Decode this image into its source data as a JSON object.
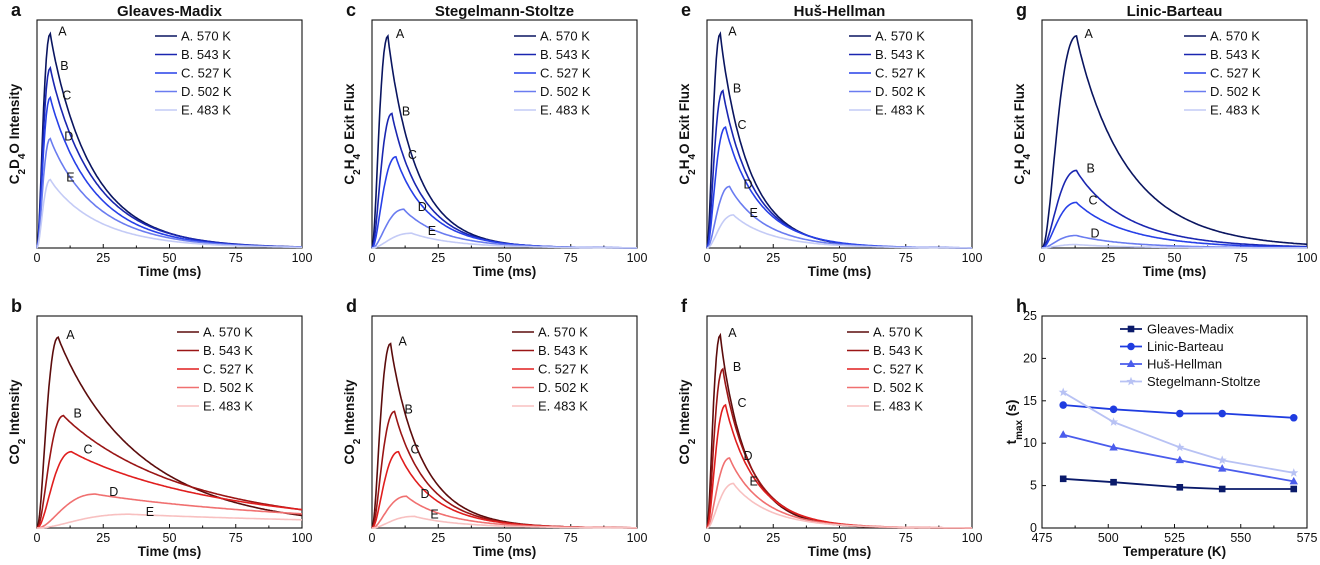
{
  "colors": {
    "blue": [
      "#0a1560",
      "#1a26b0",
      "#2740e8",
      "#6a7cf0",
      "#c4cbf6"
    ],
    "red": [
      "#5c0c0c",
      "#9a1515",
      "#e01e1e",
      "#f07070",
      "#f8c0c0"
    ],
    "summary": [
      "#0a1a6a",
      "#1f3ce0",
      "#4a5cec",
      "#b8c2f4"
    ]
  },
  "chart_data": [
    {
      "id": "a",
      "letter": "a",
      "title": "Gleaves-Madix",
      "type": "line",
      "xlabel": "Time (ms)",
      "ylabel": "C2D4O Intensity",
      "xlim": [
        0,
        100
      ],
      "xticks": [
        "0",
        "25",
        "50",
        "75",
        "100"
      ],
      "y_ticklabels": false,
      "color_family": "blue",
      "curve_labels": [
        "A",
        "B",
        "C",
        "D",
        "E"
      ],
      "series": [
        {
          "name": "A. 570 K",
          "peak_x": 5,
          "peak_y": 0.94,
          "tail": 16
        },
        {
          "name": "B. 543 K",
          "peak_x": 5,
          "peak_y": 0.79,
          "tail": 17
        },
        {
          "name": "C. 527 K",
          "peak_x": 5,
          "peak_y": 0.66,
          "tail": 17
        },
        {
          "name": "D. 502 K",
          "peak_x": 5,
          "peak_y": 0.48,
          "tail": 18
        },
        {
          "name": "E. 483 K",
          "peak_x": 5,
          "peak_y": 0.3,
          "tail": 19
        }
      ]
    },
    {
      "id": "b",
      "letter": "b",
      "title": "",
      "type": "line",
      "xlabel": "Time (ms)",
      "ylabel": "CO2 Intensity",
      "xlim": [
        0,
        100
      ],
      "xticks": [
        "0",
        "25",
        "50",
        "75",
        "100"
      ],
      "y_ticklabels": false,
      "color_family": "red",
      "curve_labels": [
        "A",
        "B",
        "C",
        "D",
        "E"
      ],
      "series": [
        {
          "name": "A. 570 K",
          "peak_x": 8,
          "peak_y": 0.9,
          "tail": 32
        },
        {
          "name": "B. 543 K",
          "peak_x": 10,
          "peak_y": 0.53,
          "tail": 48
        },
        {
          "name": "C. 527 K",
          "peak_x": 13,
          "peak_y": 0.36,
          "tail": 60
        },
        {
          "name": "D. 502 K",
          "peak_x": 22,
          "peak_y": 0.16,
          "tail": 90
        },
        {
          "name": "E. 483 K",
          "peak_x": 35,
          "peak_y": 0.065,
          "tail": 130
        }
      ]
    },
    {
      "id": "c",
      "letter": "c",
      "title": "Stegelmann-Stoltze",
      "type": "line",
      "xlabel": "Time (ms)",
      "ylabel": "C2H4O Exit Flux",
      "xlim": [
        0,
        100
      ],
      "xticks": [
        "0",
        "25",
        "50",
        "75",
        "100"
      ],
      "y_ticklabels": false,
      "color_family": "blue",
      "curve_labels": [
        "A",
        "B",
        "C",
        "D",
        "E"
      ],
      "series": [
        {
          "name": "A. 570 K",
          "peak_x": 6,
          "peak_y": 0.93,
          "tail": 11
        },
        {
          "name": "B. 543 K",
          "peak_x": 7.5,
          "peak_y": 0.59,
          "tail": 12
        },
        {
          "name": "C. 527 K",
          "peak_x": 9,
          "peak_y": 0.4,
          "tail": 13
        },
        {
          "name": "D. 502 K",
          "peak_x": 12,
          "peak_y": 0.17,
          "tail": 15
        },
        {
          "name": "E. 483 K",
          "peak_x": 15,
          "peak_y": 0.065,
          "tail": 17
        }
      ]
    },
    {
      "id": "d",
      "letter": "d",
      "title": "",
      "type": "line",
      "xlabel": "Time (ms)",
      "ylabel": "CO2 Intensity",
      "xlim": [
        0,
        100
      ],
      "xticks": [
        "0",
        "25",
        "50",
        "75",
        "100"
      ],
      "y_ticklabels": false,
      "color_family": "red",
      "curve_labels": [
        "A",
        "B",
        "C",
        "D",
        "E"
      ],
      "series": [
        {
          "name": "A. 570 K",
          "peak_x": 7,
          "peak_y": 0.87,
          "tail": 12
        },
        {
          "name": "B. 543 K",
          "peak_x": 8.5,
          "peak_y": 0.55,
          "tail": 13
        },
        {
          "name": "C. 527 K",
          "peak_x": 10,
          "peak_y": 0.36,
          "tail": 14
        },
        {
          "name": "D. 502 K",
          "peak_x": 13,
          "peak_y": 0.15,
          "tail": 16
        },
        {
          "name": "E. 483 K",
          "peak_x": 16,
          "peak_y": 0.055,
          "tail": 18
        }
      ]
    },
    {
      "id": "e",
      "letter": "e",
      "title": "Huš-Hellman",
      "type": "line",
      "xlabel": "Time (ms)",
      "ylabel": "C2H4O Exit Flux",
      "xlim": [
        0,
        100
      ],
      "xticks": [
        "0",
        "25",
        "50",
        "75",
        "100"
      ],
      "y_ticklabels": false,
      "color_family": "blue",
      "curve_labels": [
        "A",
        "B",
        "C",
        "D",
        "E"
      ],
      "series": [
        {
          "name": "A. 570 K",
          "peak_x": 5,
          "peak_y": 0.94,
          "tail": 11
        },
        {
          "name": "B. 543 K",
          "peak_x": 6,
          "peak_y": 0.69,
          "tail": 12
        },
        {
          "name": "C. 527 K",
          "peak_x": 7,
          "peak_y": 0.53,
          "tail": 13
        },
        {
          "name": "D. 502 K",
          "peak_x": 8.5,
          "peak_y": 0.27,
          "tail": 14
        },
        {
          "name": "E. 483 K",
          "peak_x": 10,
          "peak_y": 0.145,
          "tail": 15
        }
      ]
    },
    {
      "id": "f",
      "letter": "f",
      "title": "",
      "type": "line",
      "xlabel": "Time (ms)",
      "ylabel": "CO2 Intensity",
      "xlim": [
        0,
        100
      ],
      "xticks": [
        "0",
        "25",
        "50",
        "75",
        "100"
      ],
      "y_ticklabels": false,
      "color_family": "red",
      "curve_labels": [
        "A",
        "B",
        "C",
        "D",
        "E"
      ],
      "series": [
        {
          "name": "A. 570 K",
          "peak_x": 5,
          "peak_y": 0.91,
          "tail": 10
        },
        {
          "name": "B. 543 K",
          "peak_x": 6,
          "peak_y": 0.75,
          "tail": 11
        },
        {
          "name": "C. 527 K",
          "peak_x": 7,
          "peak_y": 0.58,
          "tail": 12
        },
        {
          "name": "D. 502 K",
          "peak_x": 8.5,
          "peak_y": 0.33,
          "tail": 13
        },
        {
          "name": "E. 483 K",
          "peak_x": 10,
          "peak_y": 0.21,
          "tail": 14
        }
      ]
    },
    {
      "id": "g",
      "letter": "g",
      "title": "Linic-Barteau",
      "type": "line",
      "xlabel": "Time (ms)",
      "ylabel": "C2H4O Exit Flux",
      "xlim": [
        0,
        100
      ],
      "xticks": [
        "0",
        "25",
        "50",
        "75",
        "100"
      ],
      "y_ticklabels": false,
      "color_family": "blue",
      "curve_labels": [
        "A",
        "B",
        "C",
        "D"
      ],
      "series": [
        {
          "name": "A. 570 K",
          "peak_x": 13,
          "peak_y": 0.93,
          "tail": 20
        },
        {
          "name": "B. 543 K",
          "peak_x": 13,
          "peak_y": 0.34,
          "tail": 20
        },
        {
          "name": "C. 527 K",
          "peak_x": 13,
          "peak_y": 0.2,
          "tail": 20
        },
        {
          "name": "D. 502 K",
          "peak_x": 13,
          "peak_y": 0.055,
          "tail": 20
        },
        {
          "name": "E. 483 K",
          "peak_x": 13,
          "peak_y": 0.015,
          "tail": 20
        }
      ]
    },
    {
      "id": "h",
      "letter": "h",
      "title": "",
      "type": "line",
      "xlabel": "Temperature (K)",
      "ylabel": "t",
      "ylabel_sub": "max",
      "ylabel_unit": " (s)",
      "xlim": [
        475,
        575
      ],
      "ylim": [
        0,
        25
      ],
      "xticks": [
        "475",
        "500",
        "525",
        "550",
        "575"
      ],
      "yticks": [
        "0",
        "5",
        "10",
        "15",
        "20",
        "25"
      ],
      "x": [
        483,
        502,
        527,
        543,
        570
      ],
      "series": [
        {
          "name": "Gleaves-Madix",
          "marker": "square",
          "values": [
            5.8,
            5.4,
            4.8,
            4.6,
            4.6
          ]
        },
        {
          "name": "Linic-Barteau",
          "marker": "circle",
          "values": [
            14.5,
            14.0,
            13.5,
            13.5,
            13.0
          ]
        },
        {
          "name": "Huš-Hellman",
          "marker": "triangle",
          "values": [
            11.0,
            9.5,
            8.0,
            7.0,
            5.5
          ]
        },
        {
          "name": "Stegelmann-Stoltze",
          "marker": "star",
          "values": [
            16.0,
            12.5,
            9.5,
            8.0,
            6.5
          ]
        }
      ]
    }
  ]
}
